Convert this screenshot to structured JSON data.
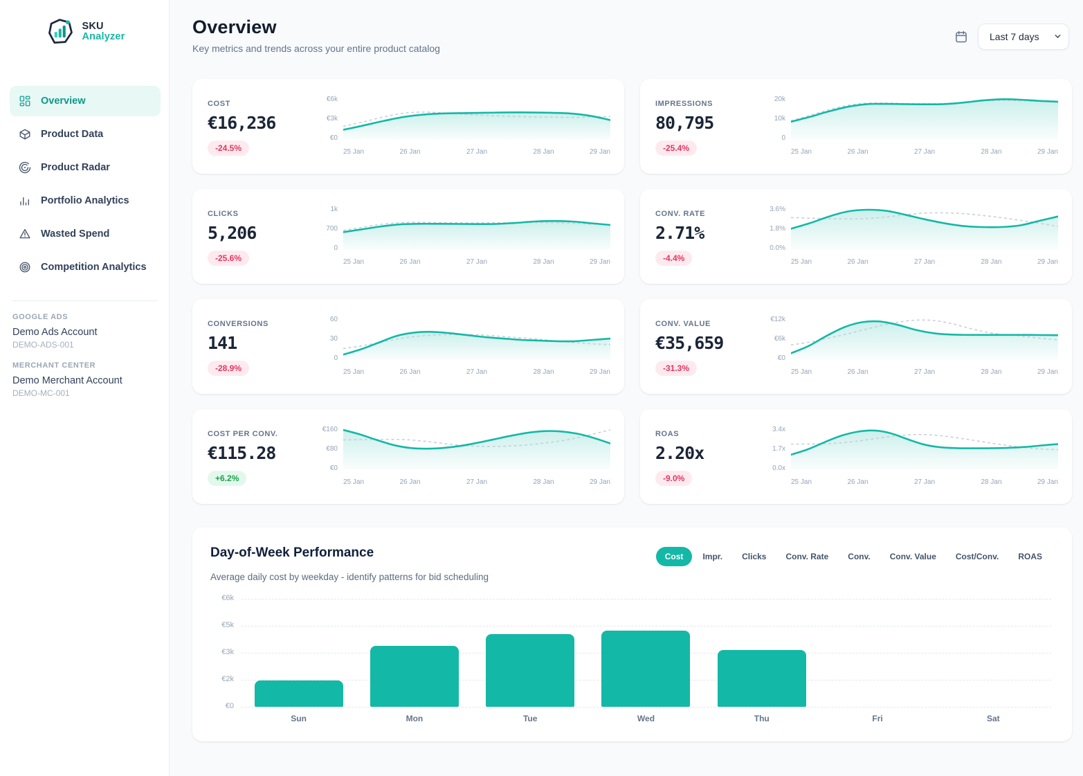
{
  "app": {
    "logo_line1": "SKU",
    "logo_line2": "Analyzer"
  },
  "colors": {
    "teal": "#14b8a6",
    "teal_text": "#0f9888",
    "nav_active_bg": "#e7f8f5",
    "negative_text": "#e4365f",
    "negative_bg": "#fdeaef",
    "positive_text": "#18a34a",
    "positive_bg": "#e3f8ec",
    "dashed_line": "#c6cfda",
    "tick_text": "#94a3b8",
    "page_bg": "#f8fafc"
  },
  "sidebar": {
    "nav": [
      {
        "id": "overview",
        "label": "Overview",
        "icon": "dashboard-icon",
        "active": true
      },
      {
        "id": "product-data",
        "label": "Product Data",
        "icon": "package-icon",
        "active": false
      },
      {
        "id": "product-radar",
        "label": "Product Radar",
        "icon": "radar-icon",
        "active": false
      },
      {
        "id": "portfolio-analytics",
        "label": "Portfolio Analytics",
        "icon": "bar-chart-icon",
        "active": false
      },
      {
        "id": "wasted-spend",
        "label": "Wasted Spend",
        "icon": "warning-icon",
        "active": false
      },
      {
        "id": "competition-analytics",
        "label": "Competition Analytics",
        "icon": "target-icon",
        "active": false
      }
    ],
    "accounts": [
      {
        "section": "GOOGLE ADS",
        "name": "Demo Ads Account",
        "account_id": "DEMO-ADS-001"
      },
      {
        "section": "MERCHANT CENTER",
        "name": "Demo Merchant Account",
        "account_id": "DEMO-MC-001"
      }
    ]
  },
  "header": {
    "title": "Overview",
    "subtitle": "Key metrics and trends across your entire product catalog",
    "date_range": "Last 7 days"
  },
  "sparkline_x_ticks": [
    "25 Jan",
    "26 Jan",
    "27 Jan",
    "28 Jan",
    "29 Jan"
  ],
  "cards": [
    {
      "label": "COST",
      "value": "€16,236",
      "change": "-24.5%",
      "direction": "down",
      "y_ticks": [
        "€6k",
        "€3k",
        "€0"
      ],
      "axis_max": 6000,
      "series_current": [
        1500,
        2150,
        2850,
        3450,
        3800,
        3950,
        4000,
        4050,
        4100,
        4100,
        4050,
        3950,
        3600,
        2950
      ],
      "series_previous": [
        2000,
        2700,
        3450,
        4000,
        4150,
        4000,
        3800,
        3650,
        3550,
        3450,
        3400,
        3350,
        3400,
        3500
      ]
    },
    {
      "label": "IMPRESSIONS",
      "value": "80,795",
      "change": "-25.4%",
      "direction": "down",
      "y_ticks": [
        "20k",
        "10k",
        "0"
      ],
      "axis_max": 20000,
      "series_current": [
        9000,
        11500,
        14200,
        16500,
        17800,
        17900,
        17800,
        17700,
        17800,
        18500,
        19600,
        20200,
        20000,
        19400,
        19000
      ],
      "series_previous": [
        9500,
        12200,
        15000,
        17200,
        18300,
        18300,
        18100,
        18000,
        18100,
        18600,
        19300,
        19700,
        19500,
        19100,
        18800
      ]
    },
    {
      "label": "CLICKS",
      "value": "5,206",
      "change": "-25.6%",
      "direction": "down",
      "y_ticks": [
        "1k",
        "700",
        "0"
      ],
      "axis_max": 1400,
      "series_current": [
        620,
        720,
        820,
        890,
        910,
        910,
        905,
        900,
        905,
        940,
        990,
        1010,
        990,
        930,
        870
      ],
      "series_previous": [
        680,
        790,
        890,
        950,
        960,
        950,
        945,
        940,
        945,
        950,
        955,
        950,
        930,
        900,
        880
      ]
    },
    {
      "label": "CONV. RATE",
      "value": "2.71%",
      "change": "-4.4%",
      "direction": "down",
      "y_ticks": [
        "3.6%",
        "1.8%",
        "0.0%"
      ],
      "axis_max": 3.6,
      "series_current": [
        1.9,
        2.4,
        3.0,
        3.45,
        3.6,
        3.5,
        3.15,
        2.75,
        2.4,
        2.15,
        2.05,
        2.05,
        2.2,
        2.6,
        3.0
      ],
      "series_previous": [
        2.9,
        2.85,
        2.8,
        2.78,
        2.82,
        2.95,
        3.15,
        3.3,
        3.32,
        3.25,
        3.1,
        2.9,
        2.65,
        2.4,
        2.1
      ]
    },
    {
      "label": "CONVERSIONS",
      "value": "141",
      "change": "-28.9%",
      "direction": "down",
      "y_ticks": [
        "60",
        "30",
        "0"
      ],
      "axis_max": 60,
      "series_current": [
        8,
        16,
        26,
        36,
        41,
        42,
        40,
        37,
        34,
        32,
        30,
        29,
        28,
        28,
        30,
        32
      ],
      "series_previous": [
        17,
        21,
        26,
        31,
        35,
        37,
        38,
        38,
        37,
        35,
        33,
        31,
        28,
        26,
        24,
        23
      ]
    },
    {
      "label": "CONV. VALUE",
      "value": "€35,659",
      "change": "-31.3%",
      "direction": "down",
      "y_ticks": [
        "€12k",
        "€6k",
        "€0"
      ],
      "axis_max": 12000,
      "series_current": [
        2000,
        4200,
        7200,
        9800,
        11300,
        11500,
        10500,
        9000,
        8000,
        7600,
        7500,
        7500,
        7500,
        7500,
        7450,
        7400
      ],
      "series_previous": [
        4500,
        5300,
        6400,
        7600,
        8900,
        10200,
        11300,
        11900,
        11800,
        10900,
        9500,
        8300,
        7500,
        7100,
        6500,
        6000
      ]
    },
    {
      "label": "COST PER CONV.",
      "value": "€115.28",
      "change": "+6.2%",
      "direction": "up",
      "y_ticks": [
        "€160",
        "€80",
        "€0"
      ],
      "axis_max": 160,
      "series_current": [
        160,
        142,
        120,
        100,
        88,
        85,
        88,
        96,
        108,
        122,
        136,
        148,
        155,
        154,
        145,
        128,
        106
      ],
      "series_previous": [
        120,
        121,
        122,
        122,
        120,
        114,
        106,
        99,
        95,
        94,
        96,
        100,
        107,
        116,
        128,
        144,
        160
      ]
    },
    {
      "label": "ROAS",
      "value": "2.20x",
      "change": "-9.0%",
      "direction": "down",
      "y_ticks": [
        "3.4x",
        "1.7x",
        "0.0x"
      ],
      "axis_max": 3.4,
      "series_current": [
        1.3,
        1.75,
        2.35,
        2.9,
        3.25,
        3.35,
        3.1,
        2.6,
        2.15,
        1.92,
        1.85,
        1.84,
        1.85,
        1.88,
        1.95,
        2.08,
        2.2
      ],
      "series_previous": [
        2.2,
        2.2,
        2.22,
        2.3,
        2.45,
        2.65,
        2.85,
        2.98,
        3.0,
        2.9,
        2.72,
        2.5,
        2.28,
        2.08,
        1.9,
        1.78,
        1.72
      ]
    }
  ],
  "dow": {
    "title": "Day-of-Week Performance",
    "subtitle": "Average daily cost by weekday - identify patterns for bid scheduling",
    "tabs": [
      {
        "label": "Cost",
        "active": true
      },
      {
        "label": "Impr.",
        "active": false
      },
      {
        "label": "Clicks",
        "active": false
      },
      {
        "label": "Conv. Rate",
        "active": false
      },
      {
        "label": "Conv.",
        "active": false
      },
      {
        "label": "Conv. Value",
        "active": false
      },
      {
        "label": "Cost/Conv.",
        "active": false
      },
      {
        "label": "ROAS",
        "active": false
      }
    ]
  },
  "chart_data": {
    "type": "bar",
    "title": "Day-of-Week Performance",
    "subtitle": "Average daily cost by weekday - identify patterns for bid scheduling",
    "categories": [
      "Sun",
      "Mon",
      "Tue",
      "Wed",
      "Thu",
      "Fri",
      "Sat"
    ],
    "values": [
      1450,
      3400,
      4050,
      4250,
      3170,
      0,
      0
    ],
    "xlabel": "",
    "ylabel": "",
    "ylim": [
      0,
      6000
    ],
    "ytick_labels_top_to_bottom": [
      "€6k",
      "€5k",
      "€3k",
      "€2k",
      "€0"
    ],
    "grid": "horizontal-dashed",
    "bar_color": "#14b8a6",
    "legend": "none"
  }
}
